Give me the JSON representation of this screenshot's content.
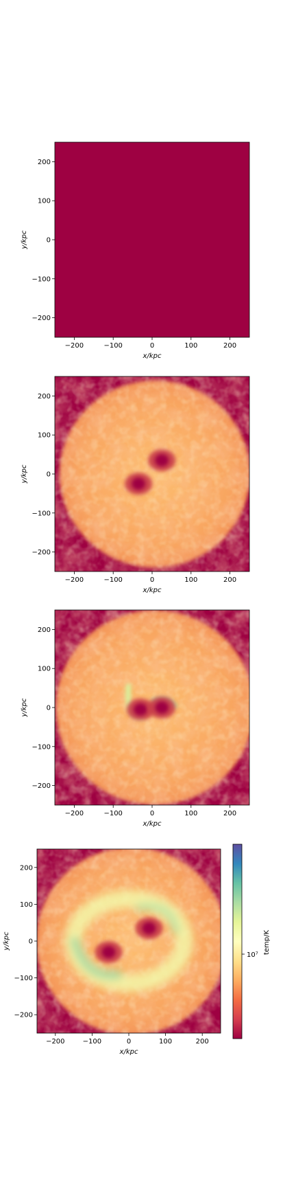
{
  "chart_data": [
    {
      "type": "heatmap",
      "xlabel": "x/kpc",
      "ylabel": "y/kpc",
      "xlim": [
        -250,
        250
      ],
      "ylim": [
        -250,
        250
      ],
      "xticks": [
        -200,
        -100,
        0,
        100,
        200
      ],
      "yticks": [
        -200,
        -100,
        0,
        100,
        200
      ],
      "xtick_labels": [
        "−200",
        "−100",
        "0",
        "100",
        "200"
      ],
      "ytick_labels": [
        "−200",
        "−100",
        "0",
        "100",
        "200"
      ],
      "field": "uniform",
      "colorbar": false
    },
    {
      "type": "heatmap",
      "xlabel": "x/kpc",
      "ylabel": "y/kpc",
      "xlim": [
        -250,
        250
      ],
      "ylim": [
        -250,
        250
      ],
      "xticks": [
        -200,
        -100,
        0,
        100,
        200
      ],
      "yticks": [
        -200,
        -100,
        0,
        100,
        200
      ],
      "xtick_labels": [
        "−200",
        "−100",
        "0",
        "100",
        "200"
      ],
      "ytick_labels": [
        "−200",
        "−100",
        "0",
        "100",
        "200"
      ],
      "cool_cores": [
        [
          -35,
          -25
        ],
        [
          25,
          35
        ]
      ],
      "disk_radius": 245,
      "colorbar": false
    },
    {
      "type": "heatmap",
      "xlabel": "x/kpc",
      "ylabel": "y/kpc",
      "xlim": [
        -250,
        250
      ],
      "ylim": [
        -250,
        250
      ],
      "xticks": [
        -200,
        -100,
        0,
        100,
        200
      ],
      "yticks": [
        -200,
        -100,
        0,
        100,
        200
      ],
      "xtick_labels": [
        "−200",
        "−100",
        "0",
        "100",
        "200"
      ],
      "ytick_labels": [
        "−200",
        "−100",
        "0",
        "100",
        "200"
      ],
      "cool_cores": [
        [
          -30,
          -5
        ],
        [
          25,
          0
        ]
      ],
      "hot_arcs": true,
      "disk_radius": 255,
      "colorbar": false
    },
    {
      "type": "heatmap",
      "xlabel": "x/kpc",
      "ylabel": "y/kpc",
      "xlim": [
        -250,
        250
      ],
      "ylim": [
        -250,
        250
      ],
      "xticks": [
        -200,
        -100,
        0,
        100,
        200
      ],
      "yticks": [
        -200,
        -100,
        0,
        100,
        200
      ],
      "xtick_labels": [
        "−200",
        "−100",
        "0",
        "100",
        "200"
      ],
      "ytick_labels": [
        "−200",
        "−100",
        "0",
        "100",
        "200"
      ],
      "cool_cores": [
        [
          -55,
          -30
        ],
        [
          55,
          35
        ]
      ],
      "hot_shell": true,
      "disk_radius": 260,
      "colorbar": true,
      "colorbar_label": "temp/K",
      "colorbar_tick_label": "10⁷",
      "colormap": "Spectral"
    }
  ],
  "colors": {
    "cold": "#9e0142",
    "warm": "#f46d43",
    "mid": "#fee08b",
    "hot": "#abdda4",
    "hottest": "#5e4fa2"
  }
}
